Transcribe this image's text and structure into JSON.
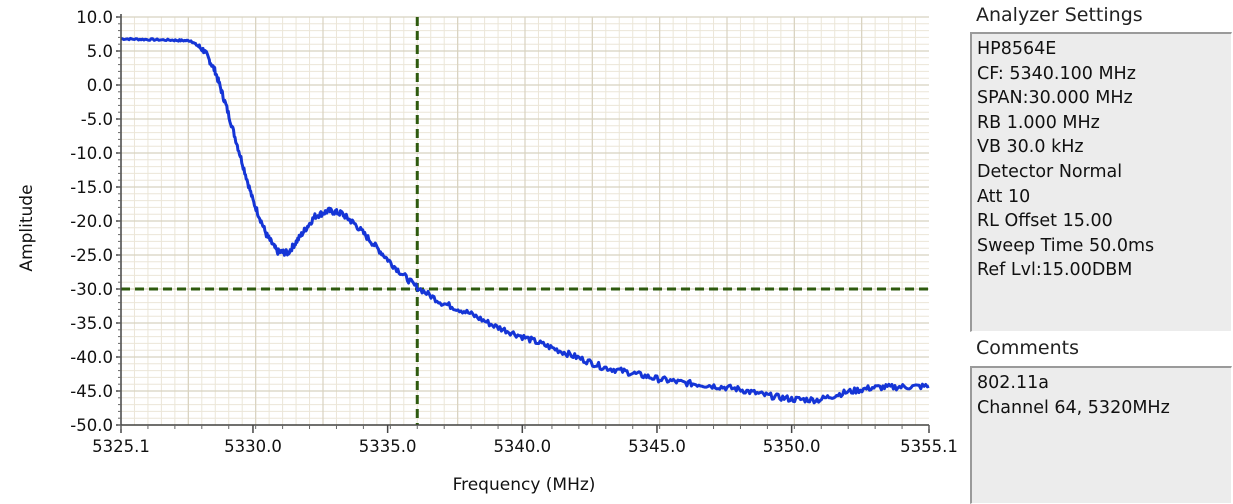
{
  "chart_data": {
    "type": "line",
    "xlabel": "Frequency (MHz)",
    "ylabel": "Amplitude",
    "xlim": [
      5325.1,
      5355.1
    ],
    "ylim": [
      -50,
      10
    ],
    "x_ticks": [
      {
        "value": 5325.1,
        "label": "5325.1"
      },
      {
        "value": 5330.0,
        "label": "5330.0"
      },
      {
        "value": 5335.0,
        "label": "5335.0"
      },
      {
        "value": 5340.0,
        "label": "5340.0"
      },
      {
        "value": 5345.0,
        "label": "5345.0"
      },
      {
        "value": 5350.0,
        "label": "5350.0"
      },
      {
        "value": 5355.1,
        "label": "5355.1"
      }
    ],
    "y_ticks": [
      "10.0",
      "5.0",
      "0.0",
      "-5.0",
      "-10.0",
      "-15.0",
      "-20.0",
      "-25.0",
      "-30.0",
      "-35.0",
      "-40.0",
      "-45.0",
      "-50.0"
    ],
    "grid": true,
    "series": [
      {
        "color": "#1535d6",
        "x": [
          5325.1,
          5326.0,
          5327.0,
          5327.7,
          5328.2,
          5328.6,
          5329.0,
          5329.5,
          5330.0,
          5330.5,
          5330.9,
          5331.3,
          5331.8,
          5332.3,
          5332.8,
          5333.3,
          5333.8,
          5334.5,
          5335.2,
          5336.0,
          5337.0,
          5338.0,
          5339.0,
          5340.0,
          5341.0,
          5342.0,
          5343.0,
          5344.0,
          5345.0,
          5346.0,
          5347.0,
          5348.0,
          5349.0,
          5350.0,
          5351.0,
          5352.0,
          5353.0,
          5354.0,
          5355.1
        ],
        "y": [
          6.8,
          6.7,
          6.6,
          6.5,
          5.0,
          2.0,
          -3.0,
          -10.0,
          -17.0,
          -22.0,
          -24.5,
          -24.7,
          -22.0,
          -19.3,
          -18.5,
          -18.9,
          -20.5,
          -23.5,
          -26.5,
          -29.5,
          -32.0,
          -33.5,
          -35.5,
          -37.0,
          -38.5,
          -40.0,
          -41.5,
          -42.3,
          -43.2,
          -43.8,
          -44.2,
          -44.7,
          -45.6,
          -46.2,
          -46.3,
          -45.2,
          -44.5,
          -44.4,
          -44.3
        ]
      }
    ],
    "cursors": {
      "x": 5336.1,
      "y": -30.0,
      "color": "#2e5a0e"
    }
  },
  "analyzer": {
    "title": "Analyzer Settings",
    "lines": [
      "HP8564E",
      "CF: 5340.100 MHz",
      "SPAN:30.000 MHz",
      "RB 1.000 MHz",
      "VB 30.0 kHz",
      "Detector Normal",
      "Att 10",
      "RL Offset 15.00",
      "Sweep Time 50.0ms",
      "Ref Lvl:15.00DBM"
    ]
  },
  "comments": {
    "title": "Comments",
    "lines": [
      "802.11a",
      "Channel 64, 5320MHz"
    ]
  }
}
